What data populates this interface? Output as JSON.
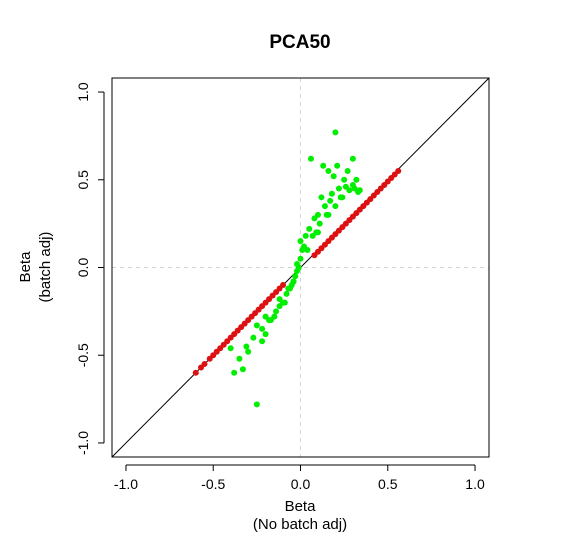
{
  "chart_data": {
    "type": "scatter",
    "title": "PCA50",
    "xlabel_lines": [
      "Beta",
      "(No batch adj)"
    ],
    "ylabel_lines": [
      "Beta",
      "(batch adj)"
    ],
    "xlim": [
      -1.0,
      1.0
    ],
    "ylim": [
      -1.0,
      1.0
    ],
    "x_ticks": [
      -1.0,
      -0.5,
      0.0,
      0.5,
      1.0
    ],
    "y_ticks": [
      -1.0,
      -0.5,
      0.0,
      0.5,
      1.0
    ],
    "x_tick_labels": [
      "-1.0",
      "-0.5",
      "0.0",
      "0.5",
      "1.0"
    ],
    "y_tick_labels": [
      "-1.0",
      "-0.5",
      "0.0",
      "0.5",
      "1.0"
    ],
    "identity_line": true,
    "reference_lines": {
      "x": 0,
      "y": 0,
      "style": "dashed",
      "color": "#d3d3d3"
    },
    "grid": false,
    "legend": "none",
    "series": [
      {
        "color": "#dd1111",
        "x": [
          -0.6,
          -0.57,
          -0.55,
          -0.52,
          -0.5,
          -0.48,
          -0.46,
          -0.44,
          -0.42,
          -0.4,
          -0.38,
          -0.36,
          -0.34,
          -0.32,
          -0.3,
          -0.28,
          -0.26,
          -0.24,
          -0.22,
          -0.2,
          -0.18,
          -0.16,
          -0.14,
          -0.12,
          -0.1,
          0.08,
          0.1,
          0.12,
          0.14,
          0.16,
          0.18,
          0.2,
          0.22,
          0.24,
          0.26,
          0.28,
          0.3,
          0.32,
          0.34,
          0.36,
          0.38,
          0.4,
          0.42,
          0.44,
          0.46,
          0.48,
          0.5,
          0.52,
          0.54,
          0.56
        ],
        "y": [
          -0.6,
          -0.57,
          -0.55,
          -0.52,
          -0.5,
          -0.48,
          -0.46,
          -0.44,
          -0.42,
          -0.4,
          -0.38,
          -0.36,
          -0.34,
          -0.32,
          -0.3,
          -0.28,
          -0.26,
          -0.24,
          -0.22,
          -0.2,
          -0.18,
          -0.16,
          -0.14,
          -0.12,
          -0.1,
          0.07,
          0.09,
          0.11,
          0.13,
          0.15,
          0.17,
          0.19,
          0.21,
          0.23,
          0.25,
          0.27,
          0.29,
          0.31,
          0.33,
          0.35,
          0.37,
          0.39,
          0.41,
          0.43,
          0.45,
          0.47,
          0.49,
          0.51,
          0.53,
          0.55
        ]
      },
      {
        "color": "#00ee00",
        "x": [
          0.2,
          0.06,
          0.13,
          0.16,
          0.19,
          0.21,
          0.25,
          0.27,
          0.3,
          0.32,
          0.33,
          0.12,
          0.14,
          0.1,
          0.08,
          0.05,
          0.03,
          0.01,
          0.0,
          -0.01,
          -0.02,
          -0.03,
          -0.04,
          -0.05,
          -0.06,
          -0.08,
          -0.1,
          -0.12,
          -0.14,
          -0.17,
          -0.2,
          -0.22,
          -0.25,
          -0.27,
          -0.31,
          -0.33,
          -0.35,
          -0.38,
          -0.4,
          -0.3,
          -0.22,
          -0.2,
          -0.18,
          -0.15,
          -0.12,
          -0.09,
          -0.07,
          -0.04,
          -0.02,
          0.02,
          0.04,
          0.07,
          0.09,
          0.11,
          0.15,
          0.17,
          0.18,
          0.22,
          0.24,
          0.26,
          0.28,
          0.31,
          0.34,
          0.2,
          0.1,
          0.0,
          -0.25,
          0.3,
          0.23,
          0.16
        ],
        "y": [
          0.77,
          0.62,
          0.58,
          0.55,
          0.52,
          0.58,
          0.5,
          0.55,
          0.47,
          0.5,
          0.43,
          0.4,
          0.35,
          0.3,
          0.28,
          0.22,
          0.18,
          0.1,
          0.05,
          0.0,
          -0.02,
          -0.05,
          -0.08,
          -0.1,
          -0.12,
          -0.15,
          -0.2,
          -0.18,
          -0.25,
          -0.3,
          -0.28,
          -0.35,
          -0.33,
          -0.4,
          -0.45,
          -0.58,
          -0.52,
          -0.6,
          -0.46,
          -0.48,
          -0.42,
          -0.38,
          -0.3,
          -0.28,
          -0.22,
          -0.2,
          -0.12,
          -0.08,
          0.02,
          0.12,
          0.1,
          0.18,
          0.2,
          0.25,
          0.3,
          0.38,
          0.42,
          0.45,
          0.4,
          0.46,
          0.44,
          0.45,
          0.44,
          0.35,
          0.2,
          0.15,
          -0.78,
          0.62,
          0.4,
          0.3
        ]
      }
    ]
  }
}
